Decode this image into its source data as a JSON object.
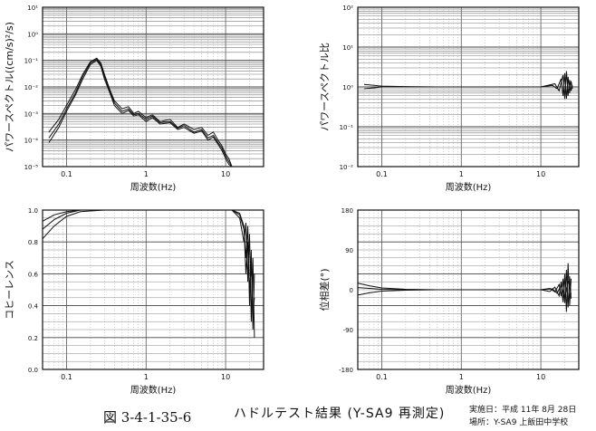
{
  "caption": {
    "figure_number": "図 3-4-1-35-6",
    "title": "ハドルテスト結果 (Y-SA9 再測定)",
    "date_line": "実施日：平成 11年 8月 28日",
    "place_line": "場所：Y-SA9 上飯田中学校"
  },
  "chart_data": [
    {
      "type": "line",
      "id": "power-spectrum",
      "title": "",
      "xlabel": "周波数(Hz)",
      "ylabel": "パワースペクトル((cm/s)²/s)",
      "xscale": "log",
      "yscale": "log",
      "xlim": [
        0.05,
        30
      ],
      "ylim": [
        1e-05,
        10
      ],
      "xticks": [
        {
          "v": 0.1,
          "label": "0.1"
        },
        {
          "v": 1,
          "label": "1"
        },
        {
          "v": 10,
          "label": "10"
        }
      ],
      "yticks": [
        {
          "v": 10,
          "label": "10¹"
        },
        {
          "v": 1,
          "label": "10⁰"
        },
        {
          "v": 0.1,
          "label": "10⁻¹"
        },
        {
          "v": 0.01,
          "label": "10⁻²"
        },
        {
          "v": 0.001,
          "label": "10⁻³"
        },
        {
          "v": 0.0001,
          "label": "10⁻⁴"
        },
        {
          "v": 1e-05,
          "label": "10⁻⁵"
        }
      ],
      "series": [
        {
          "color": "#111111",
          "points": [
            [
              0.06,
              0.0002
            ],
            [
              0.08,
              0.0006
            ],
            [
              0.1,
              0.002
            ],
            [
              0.13,
              0.008
            ],
            [
              0.16,
              0.03
            ],
            [
              0.2,
              0.09
            ],
            [
              0.24,
              0.12
            ],
            [
              0.27,
              0.08
            ],
            [
              0.3,
              0.03
            ],
            [
              0.35,
              0.008
            ],
            [
              0.4,
              0.003
            ],
            [
              0.5,
              0.0015
            ],
            [
              0.6,
              0.0018
            ],
            [
              0.7,
              0.001
            ],
            [
              0.8,
              0.0012
            ],
            [
              1.0,
              0.0007
            ],
            [
              1.2,
              0.0009
            ],
            [
              1.5,
              0.0005
            ],
            [
              2,
              0.0006
            ],
            [
              2.5,
              0.0003
            ],
            [
              3,
              0.0004
            ],
            [
              4,
              0.00025
            ],
            [
              5,
              0.0003
            ],
            [
              6,
              0.00015
            ],
            [
              7,
              0.0002
            ],
            [
              8,
              0.0001
            ],
            [
              9,
              6e-05
            ],
            [
              10,
              3e-05
            ],
            [
              11,
              2e-05
            ],
            [
              12,
              1e-05
            ]
          ]
        },
        {
          "color": "#111111",
          "points": [
            [
              0.06,
              0.00012
            ],
            [
              0.08,
              0.0004
            ],
            [
              0.1,
              0.0015
            ],
            [
              0.13,
              0.006
            ],
            [
              0.16,
              0.025
            ],
            [
              0.2,
              0.08
            ],
            [
              0.24,
              0.11
            ],
            [
              0.27,
              0.07
            ],
            [
              0.3,
              0.025
            ],
            [
              0.35,
              0.007
            ],
            [
              0.4,
              0.0025
            ],
            [
              0.5,
              0.0012
            ],
            [
              0.6,
              0.0015
            ],
            [
              0.7,
              0.0009
            ],
            [
              0.8,
              0.001
            ],
            [
              1.0,
              0.0006
            ],
            [
              1.2,
              0.0008
            ],
            [
              1.5,
              0.00045
            ],
            [
              2,
              0.0005
            ],
            [
              2.5,
              0.00028
            ],
            [
              3,
              0.00035
            ],
            [
              4,
              0.0002
            ],
            [
              5,
              0.00025
            ],
            [
              6,
              0.00012
            ],
            [
              7,
              0.00015
            ],
            [
              8,
              8e-05
            ],
            [
              9,
              5e-05
            ],
            [
              10,
              2.5e-05
            ],
            [
              11,
              1.5e-05
            ],
            [
              12,
              1e-05
            ]
          ]
        },
        {
          "color": "#111111",
          "points": [
            [
              0.06,
              8e-05
            ],
            [
              0.08,
              0.0003
            ],
            [
              0.1,
              0.0012
            ],
            [
              0.13,
              0.005
            ],
            [
              0.16,
              0.02
            ],
            [
              0.2,
              0.07
            ],
            [
              0.24,
              0.1
            ],
            [
              0.27,
              0.06
            ],
            [
              0.3,
              0.02
            ],
            [
              0.35,
              0.006
            ],
            [
              0.4,
              0.002
            ],
            [
              0.5,
              0.001
            ],
            [
              0.6,
              0.0013
            ],
            [
              0.7,
              0.0008
            ],
            [
              0.8,
              0.0009
            ],
            [
              1.0,
              0.0005
            ],
            [
              1.2,
              0.0007
            ],
            [
              1.5,
              0.0004
            ],
            [
              2,
              0.00045
            ],
            [
              2.5,
              0.00025
            ],
            [
              3,
              0.0003
            ],
            [
              4,
              0.00018
            ],
            [
              5,
              0.00022
            ],
            [
              6,
              0.0001
            ],
            [
              7,
              0.00013
            ],
            [
              8,
              7e-05
            ],
            [
              9,
              4e-05
            ],
            [
              10,
              2e-05
            ],
            [
              11,
              1.2e-05
            ],
            [
              12,
              1e-05
            ]
          ]
        }
      ]
    },
    {
      "type": "line",
      "id": "spectral-ratio",
      "title": "",
      "xlabel": "周波数(Hz)",
      "ylabel": "パワースペクトル比",
      "xscale": "log",
      "yscale": "log",
      "xlim": [
        0.05,
        30
      ],
      "ylim": [
        0.01,
        100
      ],
      "xticks": [
        {
          "v": 0.1,
          "label": "0.1"
        },
        {
          "v": 1,
          "label": "1"
        },
        {
          "v": 10,
          "label": "10"
        }
      ],
      "yticks": [
        {
          "v": 100,
          "label": "10²"
        },
        {
          "v": 10,
          "label": "10¹"
        },
        {
          "v": 1,
          "label": "10⁰"
        },
        {
          "v": 0.1,
          "label": "10⁻¹"
        },
        {
          "v": 0.01,
          "label": "10⁻²"
        }
      ],
      "series": [
        {
          "color": "#111111",
          "points": [
            [
              0.06,
              0.9
            ],
            [
              0.08,
              0.95
            ],
            [
              0.1,
              1.0
            ],
            [
              0.2,
              1.0
            ],
            [
              0.5,
              1.0
            ],
            [
              1,
              1.0
            ],
            [
              2,
              1.0
            ],
            [
              5,
              1.0
            ],
            [
              10,
              1.0
            ],
            [
              14,
              1.1
            ],
            [
              16,
              0.9
            ],
            [
              18,
              1.6
            ],
            [
              19,
              0.6
            ],
            [
              20,
              2.2
            ],
            [
              21,
              0.5
            ],
            [
              22,
              1.8
            ],
            [
              23,
              0.7
            ],
            [
              24,
              1.4
            ],
            [
              25,
              0.9
            ]
          ]
        },
        {
          "color": "#111111",
          "points": [
            [
              0.06,
              1.15
            ],
            [
              0.08,
              1.1
            ],
            [
              0.1,
              1.05
            ],
            [
              0.2,
              1.02
            ],
            [
              0.5,
              1.0
            ],
            [
              1,
              1.0
            ],
            [
              2,
              1.0
            ],
            [
              5,
              1.0
            ],
            [
              10,
              1.0
            ],
            [
              15,
              1.2
            ],
            [
              17,
              0.8
            ],
            [
              19,
              2.0
            ],
            [
              20,
              0.5
            ],
            [
              21,
              2.5
            ],
            [
              22,
              0.6
            ],
            [
              23,
              1.5
            ],
            [
              24,
              0.8
            ],
            [
              25,
              1.1
            ]
          ]
        }
      ]
    },
    {
      "type": "line",
      "id": "coherence",
      "title": "",
      "xlabel": "周波数(Hz)",
      "ylabel": "コヒーレンス",
      "xscale": "log",
      "yscale": "linear",
      "xlim": [
        0.05,
        30
      ],
      "ylim": [
        0.0,
        1.0
      ],
      "xticks": [
        {
          "v": 0.1,
          "label": "0.1"
        },
        {
          "v": 1,
          "label": "1"
        },
        {
          "v": 10,
          "label": "10"
        }
      ],
      "yticks": [
        {
          "v": 1.0,
          "label": "1.0"
        },
        {
          "v": 0.8,
          "label": "0.8"
        },
        {
          "v": 0.6,
          "label": "0.6"
        },
        {
          "v": 0.4,
          "label": "0.4"
        },
        {
          "v": 0.2,
          "label": "0.2"
        },
        {
          "v": 0.0,
          "label": "0.0"
        }
      ],
      "series": [
        {
          "color": "#111111",
          "points": [
            [
              0.05,
              0.82
            ],
            [
              0.07,
              0.9
            ],
            [
              0.1,
              0.96
            ],
            [
              0.15,
              0.99
            ],
            [
              0.3,
              1.0
            ],
            [
              1,
              1.0
            ],
            [
              5,
              1.0
            ],
            [
              12,
              1.0
            ],
            [
              15,
              0.97
            ],
            [
              17,
              0.88
            ],
            [
              18,
              0.7
            ],
            [
              19,
              0.9
            ],
            [
              20,
              0.4
            ],
            [
              21,
              0.75
            ],
            [
              22,
              0.25
            ],
            [
              23,
              0.6
            ]
          ]
        },
        {
          "color": "#111111",
          "points": [
            [
              0.05,
              0.88
            ],
            [
              0.07,
              0.94
            ],
            [
              0.1,
              0.98
            ],
            [
              0.15,
              1.0
            ],
            [
              0.3,
              1.0
            ],
            [
              1,
              1.0
            ],
            [
              5,
              1.0
            ],
            [
              12,
              1.0
            ],
            [
              15,
              0.95
            ],
            [
              17,
              0.8
            ],
            [
              18,
              0.92
            ],
            [
              19,
              0.55
            ],
            [
              20,
              0.85
            ],
            [
              21,
              0.3
            ],
            [
              22,
              0.7
            ],
            [
              23,
              0.2
            ]
          ]
        },
        {
          "color": "#111111",
          "points": [
            [
              0.05,
              0.93
            ],
            [
              0.07,
              0.97
            ],
            [
              0.1,
              0.99
            ],
            [
              0.15,
              1.0
            ],
            [
              0.3,
              1.0
            ],
            [
              1,
              1.0
            ],
            [
              5,
              1.0
            ],
            [
              12,
              1.0
            ],
            [
              15,
              0.98
            ],
            [
              17,
              0.9
            ],
            [
              18,
              0.6
            ],
            [
              19,
              0.8
            ],
            [
              20,
              0.5
            ],
            [
              21,
              0.65
            ],
            [
              22,
              0.35
            ],
            [
              23,
              0.45
            ]
          ]
        }
      ]
    },
    {
      "type": "line",
      "id": "phase-difference",
      "title": "",
      "xlabel": "周波数(Hz)",
      "ylabel": "位相差(°)",
      "xscale": "log",
      "yscale": "linear",
      "xlim": [
        0.05,
        30
      ],
      "ylim": [
        -180,
        180
      ],
      "xticks": [
        {
          "v": 0.1,
          "label": "0.1"
        },
        {
          "v": 1,
          "label": "1"
        },
        {
          "v": 10,
          "label": "10"
        }
      ],
      "yticks": [
        {
          "v": 180,
          "label": "180"
        },
        {
          "v": 90,
          "label": "90"
        },
        {
          "v": 0,
          "label": "0"
        },
        {
          "v": -90,
          "label": "-90"
        },
        {
          "v": -180,
          "label": "-180"
        }
      ],
      "series": [
        {
          "color": "#111111",
          "points": [
            [
              0.05,
              15
            ],
            [
              0.07,
              9
            ],
            [
              0.1,
              4
            ],
            [
              0.2,
              1
            ],
            [
              0.5,
              0
            ],
            [
              1,
              0
            ],
            [
              5,
              0
            ],
            [
              10,
              0
            ],
            [
              13,
              3
            ],
            [
              15,
              -5
            ],
            [
              17,
              12
            ],
            [
              18,
              -15
            ],
            [
              19,
              25
            ],
            [
              20,
              -30
            ],
            [
              21,
              45
            ],
            [
              22,
              -40
            ],
            [
              23,
              30
            ],
            [
              24,
              -20
            ]
          ]
        },
        {
          "color": "#111111",
          "points": [
            [
              0.05,
              -12
            ],
            [
              0.07,
              -7
            ],
            [
              0.1,
              -3
            ],
            [
              0.2,
              -1
            ],
            [
              0.5,
              0
            ],
            [
              1,
              0
            ],
            [
              5,
              0
            ],
            [
              10,
              0
            ],
            [
              13,
              -4
            ],
            [
              15,
              6
            ],
            [
              17,
              -14
            ],
            [
              18,
              18
            ],
            [
              19,
              -28
            ],
            [
              20,
              35
            ],
            [
              21,
              -50
            ],
            [
              22,
              60
            ],
            [
              23,
              -35
            ],
            [
              24,
              25
            ]
          ]
        },
        {
          "color": "#111111",
          "points": [
            [
              0.05,
              5
            ],
            [
              0.07,
              3
            ],
            [
              0.1,
              1
            ],
            [
              0.2,
              0
            ],
            [
              1,
              0
            ],
            [
              10,
              0
            ],
            [
              14,
              2
            ],
            [
              16,
              -8
            ],
            [
              18,
              10
            ],
            [
              20,
              -18
            ],
            [
              22,
              20
            ],
            [
              24,
              -10
            ]
          ]
        }
      ]
    }
  ]
}
